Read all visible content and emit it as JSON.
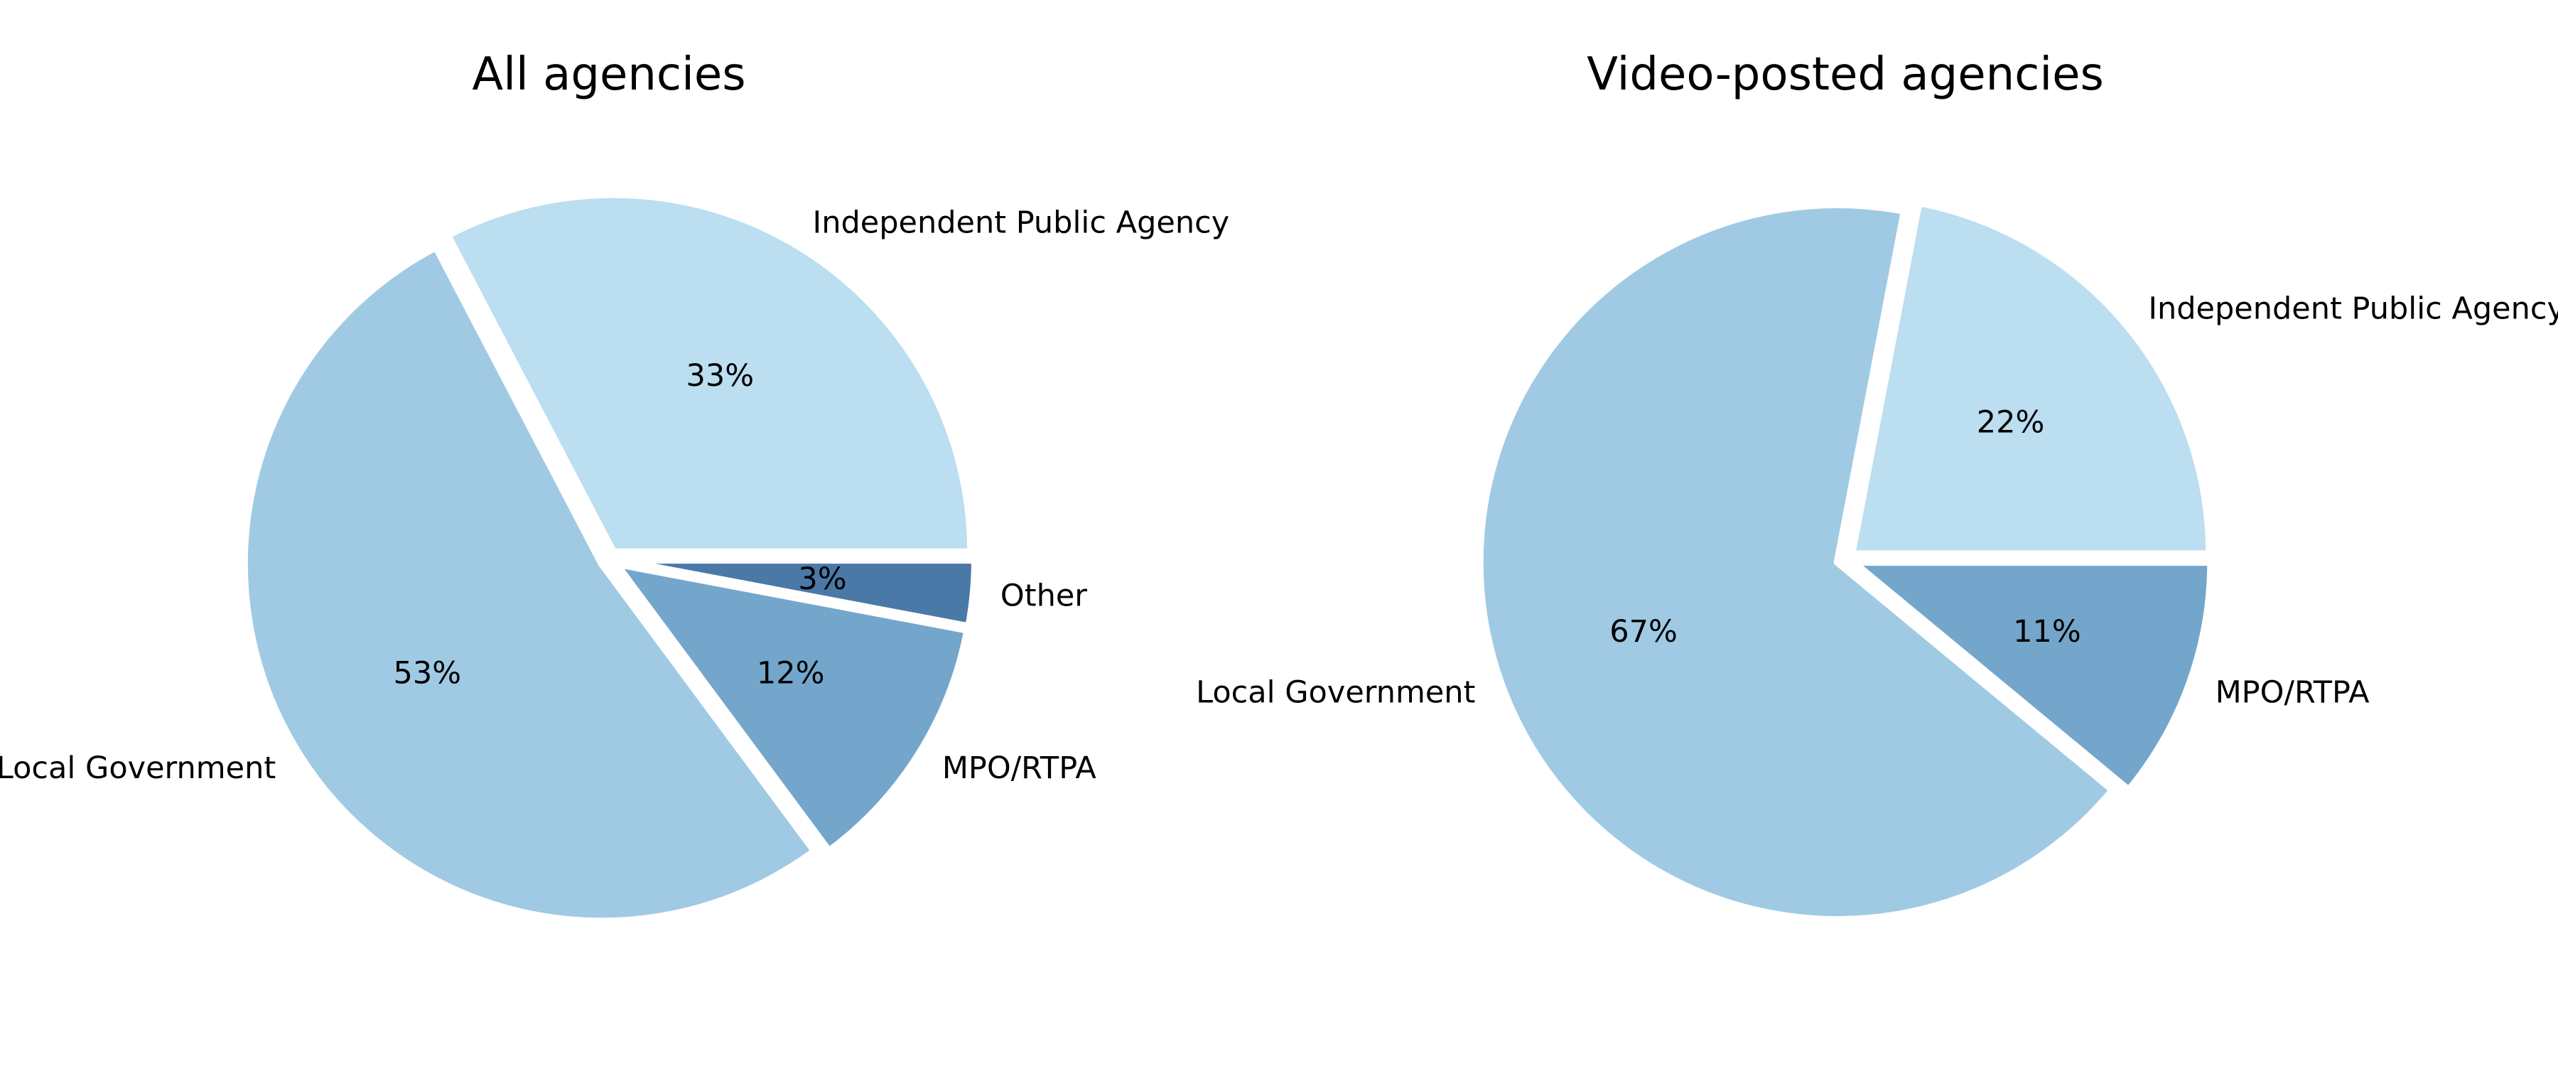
{
  "chart_data": [
    {
      "type": "pie",
      "title": "All agencies",
      "slices": [
        {
          "label": "Independent Public Agency",
          "value": 33,
          "display": "33%",
          "color": "#bbdef0"
        },
        {
          "label": "Local Government",
          "value": 53,
          "display": "53%",
          "color": "#a0cae4"
        },
        {
          "label": "MPO/RTPA",
          "value": 12,
          "display": "12%",
          "color": "#74a6cb"
        },
        {
          "label": "Other",
          "value": 3,
          "display": "3%",
          "color": "#4a79a8"
        }
      ]
    },
    {
      "type": "pie",
      "title": "Video-posted agencies",
      "slices": [
        {
          "label": "Independent Public Agency",
          "value": 22,
          "display": "22%",
          "color": "#bbdef0"
        },
        {
          "label": "Local Government",
          "value": 67,
          "display": "67%",
          "color": "#a0cae4"
        },
        {
          "label": "MPO/RTPA",
          "value": 11,
          "display": "11%",
          "color": "#74a6cb"
        }
      ]
    }
  ]
}
